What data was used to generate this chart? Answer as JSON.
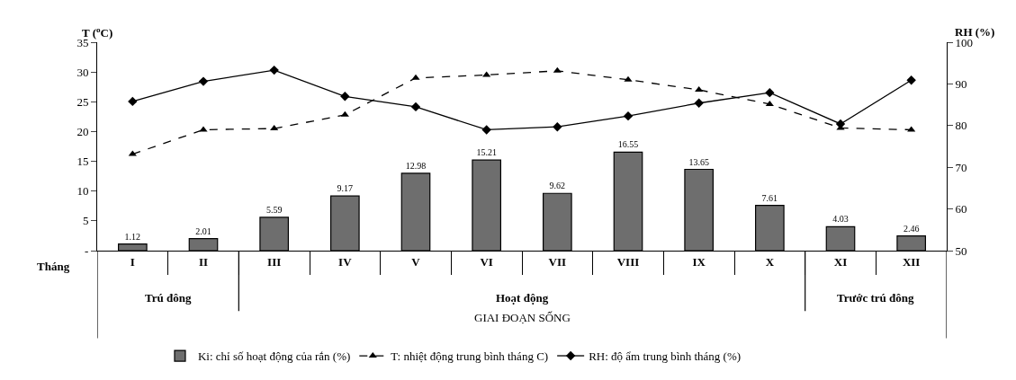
{
  "chart_data": {
    "type": "bar",
    "ylabel": "T ($^{o}$C)",
    "y2label": "RH (%)",
    "xlabel": "GIAI ĐOẠN SỐNG",
    "categories": [
      "I",
      "II",
      "III",
      "IV",
      "V",
      "VI",
      "VII",
      "VIII",
      "IX",
      "X",
      "XI",
      "XII"
    ],
    "series": [
      {
        "name": "Ki: chỉ số hoạt động của rắn (%)",
        "color": "#6e6e6e",
        "values": [
          1.12,
          2.01,
          5.59,
          9.17,
          12.98,
          15.21,
          9.62,
          16.55,
          13.65,
          7.61,
          4.03,
          2.46
        ],
        "value_labels": [
          "1.12",
          "2.01",
          "5.59",
          "9.17",
          "12.98",
          "15.21",
          "9.62",
          "16.55",
          "13.65",
          "7.61",
          "4.03",
          "2.46"
        ]
      },
      {
        "name": "T: nhiệt động trung bình tháng C)",
        "type": "line",
        "color": "#000000",
        "marker": "triangle",
        "line_style": "dashed",
        "values": [
          16.2,
          20.3,
          20.5,
          22.8,
          29.0,
          29.5,
          30.2,
          28.7,
          27.0,
          24.6,
          20.6,
          20.3
        ]
      },
      {
        "name": "RH: độ ẩm trung bình tháng (%)",
        "type": "line",
        "axis": "y2",
        "color": "#000000",
        "marker": "diamond",
        "line_style": "solid",
        "values": [
          85.8,
          90.6,
          93.3,
          87.0,
          84.5,
          79.0,
          79.7,
          82.3,
          85.4,
          87.9,
          80.4,
          90.9
        ]
      }
    ],
    "ylim": [
      0,
      35
    ],
    "yticks": [
      {
        "value": 0,
        "label": "-"
      },
      5,
      10,
      15,
      20,
      25,
      30,
      35
    ],
    "y2lim": [
      50,
      100
    ],
    "y2ticks": [
      50,
      60,
      70,
      80,
      90,
      100
    ],
    "annotations": [
      "Tháng",
      "Trú đông",
      "Hoạt động",
      "Trước trú đông"
    ],
    "grid": false,
    "legend": "bottom"
  }
}
